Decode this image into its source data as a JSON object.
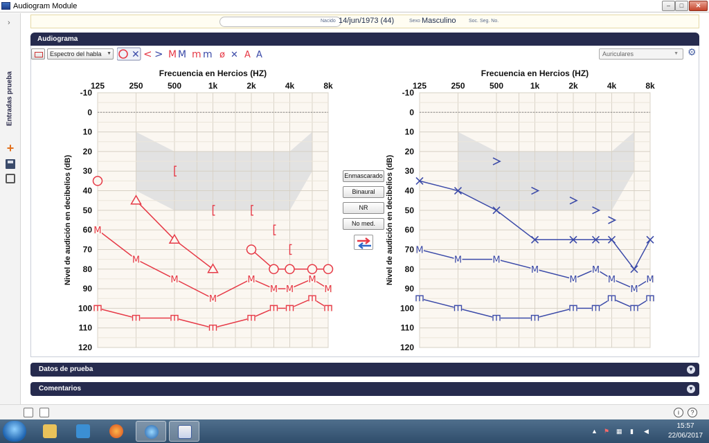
{
  "window": {
    "title": "Audiogram Module",
    "controls": {
      "minimize": "–",
      "maximize": "□",
      "close": "✕"
    }
  },
  "left_strip": {
    "expand_glyph": "›",
    "label": "Entradas prueba",
    "icons": [
      "plus-icon",
      "save-icon",
      "print-icon"
    ]
  },
  "patient": {
    "name_value": "",
    "birth_label": "Nacido",
    "birth_value": "14/jun/1973 (44)",
    "sex_label": "Sexo",
    "sex_value": "Masculino",
    "ssn_label": "Soc. Seg. No.",
    "ssn_value": ""
  },
  "audiogram": {
    "title": "Audiograma",
    "spectrum_select": "Espectro del habla",
    "aux_select": "Auriculares",
    "symbols": [
      "○",
      "✕",
      "<",
      ">",
      "M",
      "M",
      "ϖ",
      "ϖ",
      "ø",
      "✕",
      "A",
      "A"
    ],
    "buttons": {
      "masked": "Enmascarado",
      "binaural": "Binaural",
      "nr": "NR",
      "no_med": "No med."
    }
  },
  "chart_data": [
    {
      "type": "scatter",
      "title": "Frecuencia en Hercios (HZ)",
      "xlabel": "Frecuencia en Hercios (HZ)",
      "ylabel": "Nivel de audición en decibelios (dB)",
      "x_ticks": [
        "125",
        "250",
        "500",
        "1k",
        "2k",
        "4k",
        "8k"
      ],
      "x_values_hz": [
        125,
        250,
        500,
        1000,
        2000,
        4000,
        8000
      ],
      "y_ticks": [
        -10,
        0,
        10,
        20,
        30,
        40,
        50,
        60,
        70,
        80,
        90,
        100,
        110,
        120
      ],
      "ylim": [
        -10,
        120
      ],
      "y_inverted": true,
      "x_scale": "log2",
      "grid": true,
      "color": "#e63946",
      "speech_banana": true,
      "series": [
        {
          "marker": "circle",
          "x": [
            125
          ],
          "y": [
            35
          ]
        },
        {
          "marker": "triangle",
          "x": [
            250,
            500,
            1000
          ],
          "y": [
            45,
            65,
            80
          ]
        },
        {
          "marker": "circle",
          "x": [
            2000,
            3000,
            4000,
            6000,
            8000
          ],
          "y": [
            70,
            80,
            80,
            80,
            80
          ]
        },
        {
          "marker": "M",
          "x": [
            125,
            250,
            500,
            1000,
            2000,
            3000,
            4000,
            6000,
            8000
          ],
          "y": [
            60,
            75,
            85,
            95,
            85,
            90,
            90,
            85,
            90
          ]
        },
        {
          "marker": "m-bracket",
          "x": [
            125,
            250,
            500,
            1000,
            2000,
            3000,
            4000,
            6000,
            8000
          ],
          "y": [
            100,
            105,
            105,
            110,
            105,
            100,
            100,
            95,
            100
          ]
        },
        {
          "marker": "bracket",
          "x": [
            500,
            1000,
            2000,
            3000,
            4000
          ],
          "y": [
            30,
            50,
            50,
            60,
            70
          ],
          "connected": false
        }
      ],
      "dotted_zero_line": true
    },
    {
      "type": "scatter",
      "title": "Frecuencia en Hercios (HZ)",
      "xlabel": "Frecuencia en Hercios (HZ)",
      "ylabel": "Nivel de audición en decibelios (dB)",
      "x_ticks": [
        "125",
        "250",
        "500",
        "1k",
        "2k",
        "4k",
        "8k"
      ],
      "x_values_hz": [
        125,
        250,
        500,
        1000,
        2000,
        4000,
        8000
      ],
      "y_ticks": [
        -10,
        0,
        10,
        20,
        30,
        40,
        50,
        60,
        70,
        80,
        90,
        100,
        110,
        120
      ],
      "ylim": [
        -10,
        120
      ],
      "y_inverted": true,
      "x_scale": "log2",
      "grid": true,
      "color": "#3b4aa8",
      "speech_banana": true,
      "series": [
        {
          "marker": "x",
          "x": [
            125,
            250,
            500,
            1000,
            2000,
            3000,
            4000,
            6000,
            8000
          ],
          "y": [
            35,
            40,
            50,
            65,
            65,
            65,
            65,
            80,
            65
          ]
        },
        {
          "marker": "M",
          "x": [
            125,
            250,
            500,
            1000,
            2000,
            3000,
            4000,
            6000,
            8000
          ],
          "y": [
            70,
            75,
            75,
            80,
            85,
            80,
            85,
            90,
            85
          ]
        },
        {
          "marker": "m-bracket",
          "x": [
            125,
            250,
            500,
            1000,
            2000,
            3000,
            4000,
            6000,
            8000
          ],
          "y": [
            95,
            100,
            105,
            105,
            100,
            100,
            95,
            100,
            95
          ]
        },
        {
          "marker": "gt",
          "x": [
            500,
            1000,
            2000,
            3000,
            4000
          ],
          "y": [
            25,
            40,
            45,
            50,
            55
          ],
          "connected": false
        }
      ],
      "dotted_zero_line": true
    }
  ],
  "sections": {
    "datos": "Datos de prueba",
    "comentarios": "Comentarios"
  },
  "bottom_strip": {
    "info_glyph": "i",
    "help_glyph": "?"
  },
  "taskbar": {
    "apps": [
      "explorer-icon",
      "media-player-icon",
      "firefox-icon",
      "app-icon",
      "audiogram-app-icon"
    ],
    "time": "15:57",
    "date": "22/06/2017"
  }
}
